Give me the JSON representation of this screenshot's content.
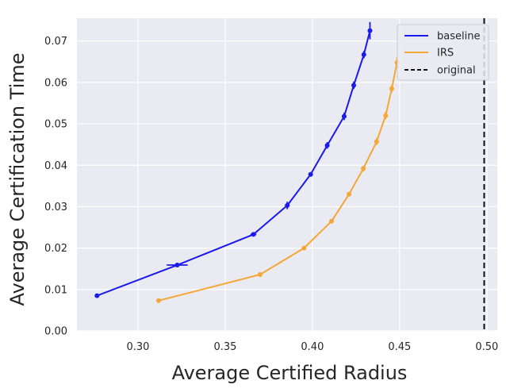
{
  "chart_data": {
    "type": "line",
    "title": "",
    "xlabel": "Average Certified Radius",
    "ylabel": "Average Certification Time",
    "xlim": [
      0.265,
      0.506
    ],
    "ylim": [
      0.0,
      0.0755
    ],
    "xticks": [
      0.3,
      0.35,
      0.4,
      0.45,
      0.5
    ],
    "xtick_labels": [
      "0.30",
      "0.35",
      "0.40",
      "0.45",
      "0.50"
    ],
    "yticks": [
      0.0,
      0.01,
      0.02,
      0.03,
      0.04,
      0.05,
      0.06,
      0.07
    ],
    "ytick_labels": [
      "0.00",
      "0.01",
      "0.02",
      "0.03",
      "0.04",
      "0.05",
      "0.06",
      "0.07"
    ],
    "grid": true,
    "legend_position": "top-right",
    "background": "#eaeaf2",
    "series": [
      {
        "name": "baseline",
        "color": "#1a1aef",
        "style": "solid",
        "points": [
          {
            "x": 0.2765,
            "y": 0.0085,
            "xerr": 0.0003,
            "yerr": 0.0003
          },
          {
            "x": 0.3225,
            "y": 0.0159,
            "xerr": 0.006,
            "yerr": 0.0003
          },
          {
            "x": 0.3662,
            "y": 0.0233,
            "xerr": 0.0017,
            "yerr": 0.0004
          },
          {
            "x": 0.3856,
            "y": 0.0303,
            "xerr": 0.0013,
            "yerr": 0.0009
          },
          {
            "x": 0.399,
            "y": 0.0378,
            "xerr": 0.0004,
            "yerr": 0.0005
          },
          {
            "x": 0.4085,
            "y": 0.0448,
            "xerr": 0.0007,
            "yerr": 0.0008
          },
          {
            "x": 0.4182,
            "y": 0.0518,
            "xerr": 0.0006,
            "yerr": 0.0009
          },
          {
            "x": 0.4237,
            "y": 0.0593,
            "xerr": 0.0006,
            "yerr": 0.0009
          },
          {
            "x": 0.4295,
            "y": 0.0667,
            "xerr": 0.0009,
            "yerr": 0.0009
          },
          {
            "x": 0.433,
            "y": 0.0725,
            "xerr": 0.0006,
            "yerr": 0.0021
          }
        ]
      },
      {
        "name": "IRS",
        "color": "#f5a736",
        "style": "solid",
        "points": [
          {
            "x": 0.3118,
            "y": 0.0073,
            "xerr": 0.0003,
            "yerr": 0.0003
          },
          {
            "x": 0.37,
            "y": 0.0136,
            "xerr": 0.0005,
            "yerr": 0.0003
          },
          {
            "x": 0.3952,
            "y": 0.02,
            "xerr": 0.0004,
            "yerr": 0.0003
          },
          {
            "x": 0.411,
            "y": 0.0265,
            "xerr": 0.0005,
            "yerr": 0.0004
          },
          {
            "x": 0.421,
            "y": 0.033,
            "xerr": 0.0004,
            "yerr": 0.0004
          },
          {
            "x": 0.4292,
            "y": 0.0392,
            "xerr": 0.0004,
            "yerr": 0.0007
          },
          {
            "x": 0.4368,
            "y": 0.0457,
            "xerr": 0.0004,
            "yerr": 0.0008
          },
          {
            "x": 0.442,
            "y": 0.052,
            "xerr": 0.0004,
            "yerr": 0.0009
          },
          {
            "x": 0.4455,
            "y": 0.0585,
            "xerr": 0.0004,
            "yerr": 0.0009
          },
          {
            "x": 0.4485,
            "y": 0.0648,
            "xerr": 0.0004,
            "yerr": 0.0013
          }
        ]
      }
    ],
    "reference_lines": [
      {
        "name": "original",
        "orientation": "vertical",
        "x": 0.4985,
        "color": "#111111",
        "style": "dashed"
      }
    ]
  }
}
